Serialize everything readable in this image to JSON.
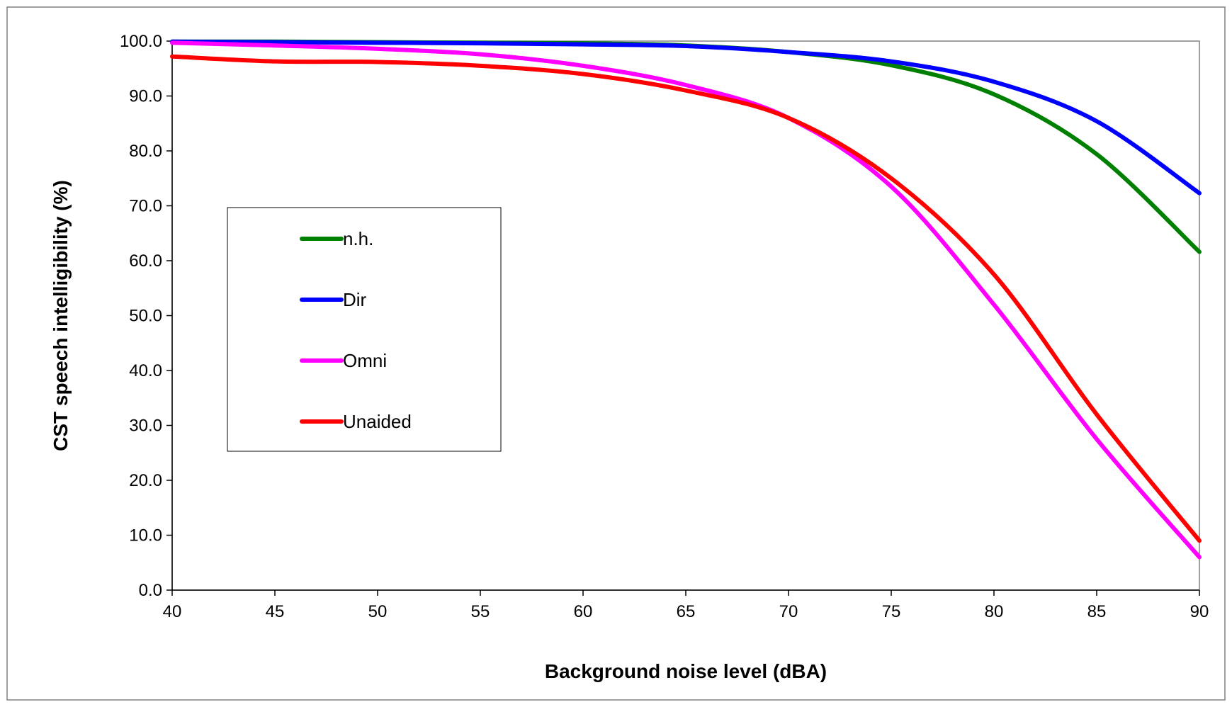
{
  "chart_data": {
    "type": "line",
    "title": "",
    "xlabel": "Background noise level (dBA)",
    "ylabel": "CST speech intelligibility (%)",
    "xlim": [
      40,
      90
    ],
    "ylim": [
      0,
      100
    ],
    "x_ticks": [
      "40",
      "45",
      "50",
      "55",
      "60",
      "65",
      "70",
      "75",
      "80",
      "85",
      "90"
    ],
    "y_ticks": [
      "0.0",
      "10.0",
      "20.0",
      "30.0",
      "40.0",
      "50.0",
      "60.0",
      "70.0",
      "80.0",
      "90.0",
      "100.0"
    ],
    "grid": false,
    "legend_position": "left-center",
    "series": [
      {
        "name": "n.h.",
        "color": "#008000",
        "x": [
          40,
          45,
          50,
          55,
          60,
          65,
          70,
          75,
          80,
          85,
          90
        ],
        "y": [
          99.9,
          99.9,
          99.8,
          99.7,
          99.6,
          99.2,
          98.0,
          95.6,
          90.3,
          79.4,
          61.6
        ]
      },
      {
        "name": "Dir",
        "color": "#0000ff",
        "x": [
          40,
          45,
          50,
          55,
          60,
          65,
          70,
          75,
          80,
          85,
          90
        ],
        "y": [
          99.9,
          99.8,
          99.7,
          99.6,
          99.4,
          99.1,
          98.0,
          96.3,
          92.6,
          85.4,
          72.3
        ]
      },
      {
        "name": "Omni",
        "color": "#ff00ff",
        "x": [
          40,
          45,
          50,
          55,
          60,
          65,
          70,
          75,
          80,
          85,
          90
        ],
        "y": [
          99.7,
          99.2,
          98.6,
          97.6,
          95.5,
          92.0,
          86.0,
          73.5,
          52.0,
          27.5,
          6.0
        ]
      },
      {
        "name": "Unaided",
        "color": "#ff0000",
        "x": [
          40,
          45,
          50,
          55,
          60,
          65,
          70,
          75,
          80,
          85,
          90
        ],
        "y": [
          97.2,
          96.3,
          96.2,
          95.5,
          94.0,
          91.0,
          86.0,
          75.0,
          57.5,
          32.0,
          9.0
        ]
      }
    ]
  }
}
